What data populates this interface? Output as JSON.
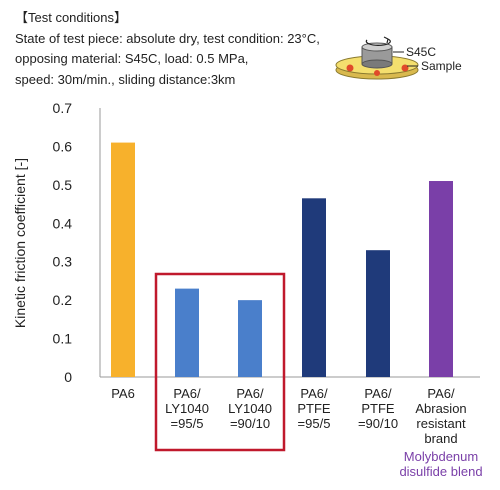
{
  "conditions": {
    "heading": "【Test conditions】",
    "lines": [
      "State of test piece: absolute dry, test condition: 23°C,",
      "opposing material: S45C, load: 0.5 MPa,",
      "speed: 30m/min., sliding distance:3km"
    ]
  },
  "inset": {
    "label_s45c": "S45C",
    "label_sample": "Sample"
  },
  "chart_data": {
    "type": "bar",
    "ylabel": "Kinetic friction coefficient [-]",
    "ylim": [
      0,
      0.7
    ],
    "yticks": [
      "0",
      "0.1",
      "0.2",
      "0.3",
      "0.4",
      "0.5",
      "0.6",
      "0.7"
    ],
    "grid": false,
    "categories": [
      [
        "PA6"
      ],
      [
        "PA6/",
        "LY1040",
        "=95/5"
      ],
      [
        "PA6/",
        "LY1040",
        "=90/10"
      ],
      [
        "PA6/",
        "PTFE",
        "=95/5"
      ],
      [
        "PA6/",
        "PTFE",
        "=90/10"
      ],
      [
        "PA6/",
        "Abrasion",
        "resistant",
        "brand"
      ]
    ],
    "values": [
      0.61,
      0.23,
      0.2,
      0.465,
      0.33,
      0.51
    ],
    "colors": [
      "#f7b12c",
      "#4a7fcb",
      "#4a7fcb",
      "#1f3a7a",
      "#1f3a7a",
      "#7a3fa8"
    ],
    "highlight_color": "#c0192c",
    "notes": [
      {
        "category_index": 5,
        "lines": [
          "Molybdenum",
          "disulfide blend"
        ],
        "color": "#7a3fa8"
      }
    ]
  }
}
